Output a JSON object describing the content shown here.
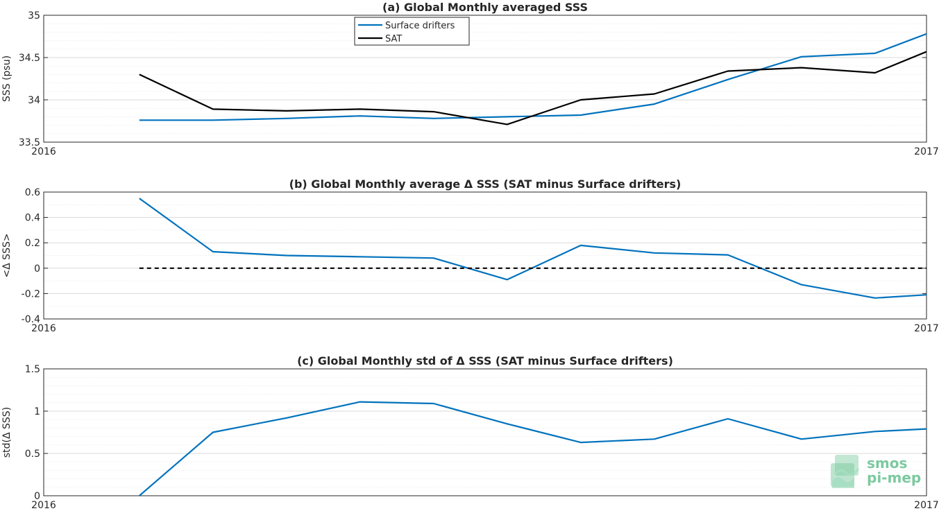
{
  "colors": {
    "series_blue": "#0072BD",
    "series_black": "#000000",
    "grid": "#dcdcdc",
    "logo": "#7cc9a0"
  },
  "logo": {
    "line1": "smos",
    "line2": "pi-mep",
    "icon": "waves-logo-icon"
  },
  "chart_data": [
    {
      "type": "line",
      "title": "(a) Global Monthly averaged SSS",
      "ylabel": "SSS (psu)",
      "xlim": [
        0,
        12
      ],
      "ylim": [
        33.5,
        35
      ],
      "x_ticks": [
        {
          "value": 0,
          "label": "2016"
        },
        {
          "value": 12,
          "label": "2017"
        }
      ],
      "y_ticks": [
        {
          "value": 33.5,
          "label": "33.5"
        },
        {
          "value": 34,
          "label": "34"
        },
        {
          "value": 34.5,
          "label": "34.5"
        },
        {
          "value": 35,
          "label": "35"
        }
      ],
      "grid": true,
      "legend": "top-center",
      "x": [
        1.3,
        2.3,
        3.3,
        4.3,
        5.3,
        6.3,
        7.3,
        8.3,
        9.3,
        10.3,
        11.3,
        12
      ],
      "series": [
        {
          "name": "Surface drifters",
          "color": "#0072BD",
          "dashed": false,
          "values": [
            33.76,
            33.76,
            33.78,
            33.81,
            33.78,
            33.8,
            33.82,
            33.95,
            34.24,
            34.51,
            34.55,
            34.78
          ]
        },
        {
          "name": "SAT",
          "color": "#000000",
          "dashed": false,
          "values": [
            34.3,
            33.89,
            33.87,
            33.89,
            33.86,
            33.71,
            34.0,
            34.07,
            34.34,
            34.38,
            34.32,
            34.57
          ]
        }
      ]
    },
    {
      "type": "line",
      "title": "(b) Global Monthly average Δ SSS (SAT minus Surface drifters)",
      "ylabel": "<Δ SSS>",
      "xlim": [
        0,
        12
      ],
      "ylim": [
        -0.4,
        0.6
      ],
      "x_ticks": [
        {
          "value": 0,
          "label": "2016"
        },
        {
          "value": 12,
          "label": "2017"
        }
      ],
      "y_ticks": [
        {
          "value": -0.4,
          "label": "-0.4"
        },
        {
          "value": -0.2,
          "label": "-0.2"
        },
        {
          "value": 0,
          "label": "0"
        },
        {
          "value": 0.2,
          "label": "0.2"
        },
        {
          "value": 0.4,
          "label": "0.4"
        },
        {
          "value": 0.6,
          "label": "0.6"
        }
      ],
      "grid": true,
      "x": [
        1.3,
        2.3,
        3.3,
        4.3,
        5.3,
        6.3,
        7.3,
        8.3,
        9.3,
        10.3,
        11.3,
        12
      ],
      "series": [
        {
          "name": "",
          "color": "#0072BD",
          "dashed": false,
          "values": [
            0.55,
            0.13,
            0.1,
            0.09,
            0.08,
            -0.09,
            0.18,
            0.12,
            0.105,
            -0.13,
            -0.235,
            -0.21
          ]
        },
        {
          "name": "",
          "color": "#000000",
          "dashed": true,
          "x": [
            1.3,
            12
          ],
          "values": [
            0,
            0
          ]
        }
      ]
    },
    {
      "type": "line",
      "title": "(c) Global Monthly std of Δ SSS (SAT minus Surface drifters)",
      "ylabel": "std(Δ SSS)",
      "xlim": [
        0,
        12
      ],
      "ylim": [
        0,
        1.5
      ],
      "x_ticks": [
        {
          "value": 0,
          "label": "2016"
        },
        {
          "value": 12,
          "label": "2017"
        }
      ],
      "y_ticks": [
        {
          "value": 0,
          "label": "0"
        },
        {
          "value": 0.5,
          "label": "0.5"
        },
        {
          "value": 1,
          "label": "1"
        },
        {
          "value": 1.5,
          "label": "1.5"
        }
      ],
      "grid": true,
      "x": [
        1.3,
        2.3,
        3.3,
        4.3,
        5.3,
        6.3,
        7.3,
        8.3,
        9.3,
        10.3,
        11.3,
        12
      ],
      "series": [
        {
          "name": "",
          "color": "#0072BD",
          "dashed": false,
          "values": [
            0.0,
            0.75,
            0.92,
            1.11,
            1.09,
            0.85,
            0.63,
            0.67,
            0.91,
            0.67,
            0.76,
            0.79
          ]
        }
      ]
    }
  ]
}
